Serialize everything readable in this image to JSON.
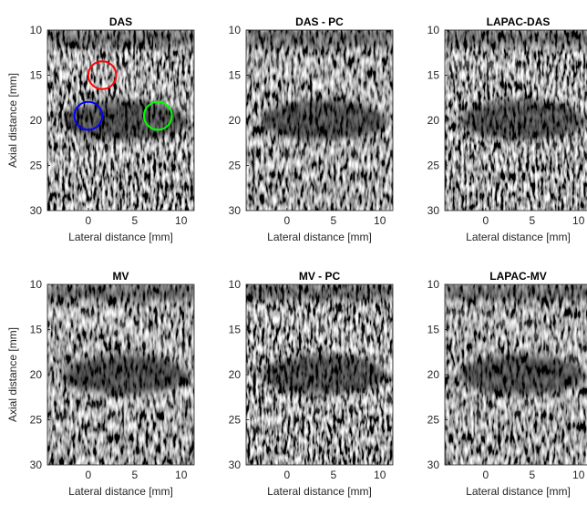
{
  "chart_data": [
    {
      "type": "image",
      "title": "DAS",
      "xlabel": "Lateral distance [mm]",
      "ylabel": "Axial distance [mm]",
      "xlim": [
        -4.4,
        11.4
      ],
      "ylim": [
        10,
        30
      ],
      "y_reversed": true,
      "xticks": [
        0,
        5,
        10
      ],
      "yticks": [
        10,
        15,
        20,
        25,
        30
      ],
      "rois": [
        {
          "color": "#ff0000",
          "x": 1.5,
          "y": 15,
          "r": 1.5
        },
        {
          "color": "#0000ff",
          "x": 0,
          "y": 19.5,
          "r": 1.5
        },
        {
          "color": "#00ff00",
          "x": 7.5,
          "y": 19.5,
          "r": 1.5
        }
      ]
    },
    {
      "type": "image",
      "title": "DAS - PC",
      "xlabel": "Lateral distance [mm]",
      "xlim": [
        -4.4,
        11.4
      ],
      "ylim": [
        10,
        30
      ],
      "y_reversed": true,
      "xticks": [
        0,
        5,
        10
      ],
      "yticks": [
        10,
        15,
        20,
        25,
        30
      ]
    },
    {
      "type": "image",
      "title": "LAPAC-DAS",
      "xlabel": "Lateral distance [mm]",
      "xlim": [
        -4.4,
        11.4
      ],
      "ylim": [
        10,
        30
      ],
      "y_reversed": true,
      "xticks": [
        0,
        5,
        10
      ],
      "yticks": [
        10,
        15,
        20,
        25,
        30
      ]
    },
    {
      "type": "image",
      "title": "MV",
      "xlabel": "Lateral distance [mm]",
      "ylabel": "Axial distance [mm]",
      "xlim": [
        -4.4,
        11.4
      ],
      "ylim": [
        10,
        30
      ],
      "y_reversed": true,
      "xticks": [
        0,
        5,
        10
      ],
      "yticks": [
        10,
        15,
        20,
        25,
        30
      ]
    },
    {
      "type": "image",
      "title": "MV - PC",
      "xlabel": "Lateral distance [mm]",
      "xlim": [
        -4.4,
        11.4
      ],
      "ylim": [
        10,
        30
      ],
      "y_reversed": true,
      "xticks": [
        0,
        5,
        10
      ],
      "yticks": [
        10,
        15,
        20,
        25,
        30
      ]
    },
    {
      "type": "image",
      "title": "LAPAC-MV",
      "xlabel": "Lateral distance [mm]",
      "xlim": [
        -4.4,
        11.4
      ],
      "ylim": [
        10,
        30
      ],
      "y_reversed": true,
      "xticks": [
        0,
        5,
        10
      ],
      "yticks": [
        10,
        15,
        20,
        25,
        30
      ]
    }
  ]
}
